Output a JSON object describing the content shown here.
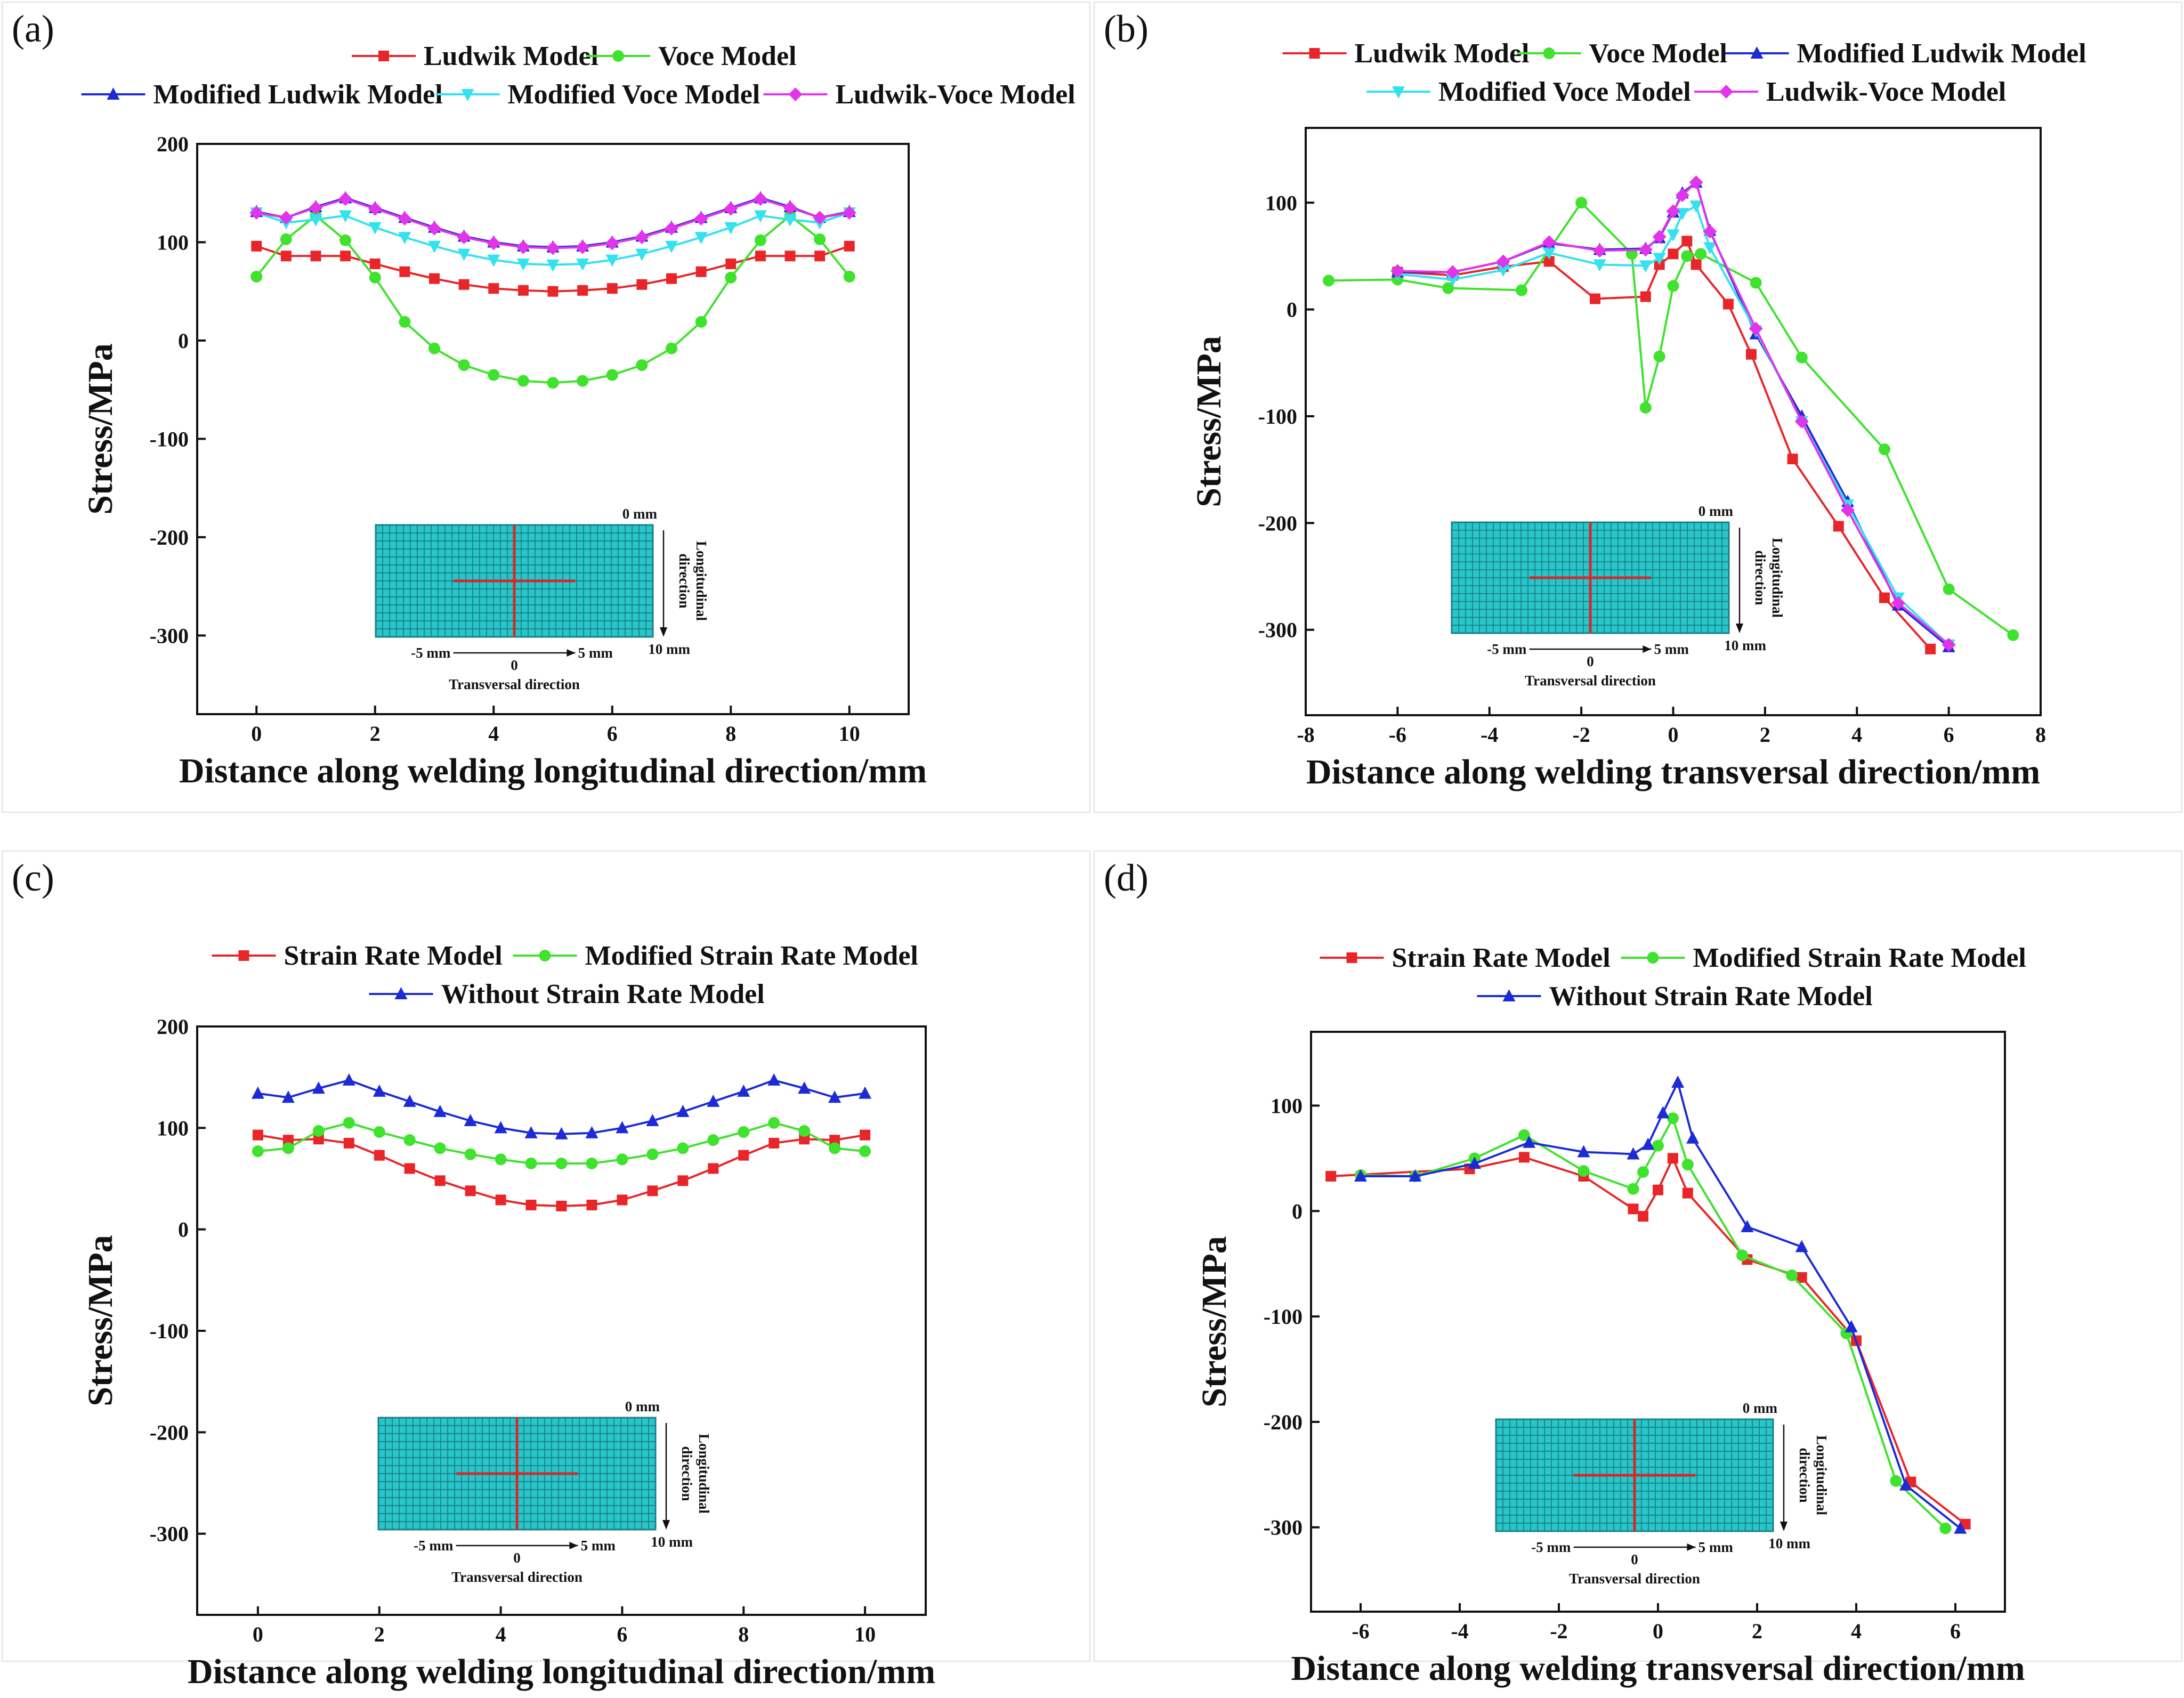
{
  "chart_data": [
    {
      "type": "line",
      "panel_label": "(a)",
      "xlabel": "Distance along welding longitudinal direction/mm",
      "ylabel": "Stress/MPa",
      "xlim": [
        -1,
        11
      ],
      "ylim": [
        -380,
        200
      ],
      "xticks": [
        0,
        2,
        4,
        6,
        8,
        10
      ],
      "yticks": [
        200,
        100,
        0,
        -100,
        -200,
        -300
      ],
      "legend_rows": [
        2,
        3
      ],
      "inset": {
        "top_label": "0 mm",
        "bottom_label": "10 mm",
        "left_label": "-5 mm",
        "center_label": "0",
        "right_label": "5 mm",
        "side_label": "Longitudinal direction",
        "bottom_caption": "Transversal direction"
      },
      "series": [
        {
          "name": "Ludwik Model",
          "color": "#e8262a",
          "marker": "square",
          "x": [
            0,
            0.5,
            1,
            1.5,
            2,
            2.5,
            3,
            3.5,
            4,
            4.5,
            5,
            5.5,
            6,
            6.5,
            7,
            7.5,
            8,
            8.5,
            9,
            9.5,
            10
          ],
          "y": [
            96,
            86,
            86,
            86,
            78,
            70,
            63,
            57,
            53,
            51,
            50,
            51,
            53,
            57,
            63,
            70,
            78,
            86,
            86,
            86,
            96
          ]
        },
        {
          "name": "Voce Model",
          "color": "#3fe22c",
          "marker": "circle",
          "x": [
            0,
            0.5,
            1,
            1.5,
            2,
            2.5,
            3,
            3.5,
            4,
            4.5,
            5,
            5.5,
            6,
            6.5,
            7,
            7.5,
            8,
            8.5,
            9,
            9.5,
            10
          ],
          "y": [
            65,
            103,
            127,
            102,
            64,
            19,
            -8,
            -25,
            -35,
            -41,
            -43,
            -41,
            -35,
            -25,
            -8,
            19,
            64,
            102,
            127,
            103,
            65
          ]
        },
        {
          "name": "Modified Ludwik Model",
          "color": "#1d2bd6",
          "marker": "triangle",
          "x": [
            0,
            0.5,
            1,
            1.5,
            2,
            2.5,
            3,
            3.5,
            4,
            4.5,
            5,
            5.5,
            6,
            6.5,
            7,
            7.5,
            8,
            8.5,
            9,
            9.5,
            10
          ],
          "y": [
            131,
            125,
            136,
            145,
            135,
            125,
            115,
            106,
            100,
            96,
            95,
            96,
            100,
            106,
            115,
            125,
            135,
            145,
            136,
            125,
            131
          ]
        },
        {
          "name": "Modified Voce Model",
          "color": "#33e2ee",
          "marker": "tri-down",
          "x": [
            0,
            0.5,
            1,
            1.5,
            2,
            2.5,
            3,
            3.5,
            4,
            4.5,
            5,
            5.5,
            6,
            6.5,
            7,
            7.5,
            8,
            8.5,
            9,
            9.5,
            10
          ],
          "y": [
            130,
            120,
            123,
            127,
            115,
            105,
            96,
            88,
            82,
            78,
            77,
            78,
            82,
            88,
            96,
            105,
            115,
            127,
            123,
            120,
            130
          ]
        },
        {
          "name": "Ludwik-Voce Model",
          "color": "#e234ea",
          "marker": "diamond",
          "x": [
            0,
            0.5,
            1,
            1.5,
            2,
            2.5,
            3,
            3.5,
            4,
            4.5,
            5,
            5.5,
            6,
            6.5,
            7,
            7.5,
            8,
            8.5,
            9,
            9.5,
            10
          ],
          "y": [
            130,
            125,
            135,
            144,
            134,
            124,
            114,
            105,
            99,
            95,
            94,
            95,
            99,
            105,
            114,
            124,
            134,
            144,
            135,
            125,
            130
          ]
        }
      ]
    },
    {
      "type": "line",
      "panel_label": "(b)",
      "xlabel": "Distance along welding transversal direction/mm",
      "ylabel": "Stress/MPa",
      "xlim": [
        -8,
        8
      ],
      "ylim": [
        -380,
        170
      ],
      "xticks": [
        -8,
        -6,
        -4,
        -2,
        0,
        2,
        4,
        6,
        8
      ],
      "yticks": [
        100,
        0,
        -100,
        -200,
        -300
      ],
      "legend_rows": [
        3,
        2
      ],
      "inset": {
        "top_label": "0 mm",
        "bottom_label": "10 mm",
        "left_label": "-5 mm",
        "center_label": "0",
        "right_label": "5 mm",
        "side_label": "Longitudinal direction",
        "bottom_caption": "Transversal direction"
      },
      "series": [
        {
          "name": "Ludwik Model",
          "color": "#e8262a",
          "marker": "square",
          "x": [
            -6,
            -4.8,
            -3.7,
            -2.7,
            -1.7,
            -0.6,
            -0.3,
            0,
            0.3,
            0.5,
            1.2,
            1.7,
            2.6,
            3.6,
            4.6,
            5.6
          ],
          "y": [
            35,
            32,
            40,
            45,
            10,
            12,
            42,
            52,
            64,
            42,
            5,
            -42,
            -140,
            -203,
            -270,
            -318
          ]
        },
        {
          "name": "Voce Model",
          "color": "#3fe22c",
          "marker": "circle",
          "x": [
            -7.5,
            -6,
            -4.9,
            -3.3,
            -2,
            -0.9,
            -0.6,
            -0.3,
            0,
            0.3,
            0.6,
            1.8,
            2.8,
            4.6,
            6,
            7.4
          ],
          "y": [
            27,
            28,
            20,
            18,
            100,
            52,
            -92,
            -44,
            22,
            50,
            52,
            25,
            -45,
            -131,
            -262,
            -305
          ]
        },
        {
          "name": "Modified Ludwik Model",
          "color": "#1d2bd6",
          "marker": "triangle",
          "x": [
            -6,
            -4.8,
            -3.7,
            -2.7,
            -1.6,
            -0.6,
            -0.3,
            0,
            0.2,
            0.5,
            0.8,
            1.8,
            2.8,
            3.8,
            4.9,
            6
          ],
          "y": [
            35,
            35,
            45,
            62,
            56,
            57,
            67,
            91,
            109,
            119,
            74,
            -23,
            -100,
            -180,
            -277,
            -316
          ]
        },
        {
          "name": "Modified Voce Model",
          "color": "#33e2ee",
          "marker": "tri-down",
          "x": [
            -6,
            -4.8,
            -3.7,
            -2.7,
            -1.6,
            -0.6,
            -0.3,
            0,
            0.2,
            0.5,
            0.8,
            1.8,
            2.8,
            3.8,
            4.9,
            6
          ],
          "y": [
            33,
            28,
            37,
            53,
            42,
            41,
            48,
            70,
            90,
            97,
            58,
            -20,
            -105,
            -183,
            -270,
            -314
          ]
        },
        {
          "name": "Ludwik-Voce Model",
          "color": "#e234ea",
          "marker": "diamond",
          "x": [
            -6,
            -4.8,
            -3.7,
            -2.7,
            -1.6,
            -0.6,
            -0.3,
            0,
            0.2,
            0.5,
            0.8,
            1.8,
            2.8,
            3.8,
            4.9,
            6
          ],
          "y": [
            36,
            35,
            45,
            63,
            55,
            56,
            68,
            92,
            107,
            119,
            73,
            -18,
            -105,
            -188,
            -275,
            -314
          ]
        }
      ]
    },
    {
      "type": "line",
      "panel_label": "(c)",
      "xlabel": "Distance along welding longitudinal direction/mm",
      "ylabel": "Stress/MPa",
      "xlim": [
        -1,
        11
      ],
      "ylim": [
        -380,
        200
      ],
      "xticks": [
        0,
        2,
        4,
        6,
        8,
        10
      ],
      "yticks": [
        200,
        100,
        0,
        -100,
        -200,
        -300
      ],
      "legend_rows": [
        2,
        1
      ],
      "inset": {
        "top_label": "0 mm",
        "bottom_label": "10 mm",
        "left_label": "-5 mm",
        "center_label": "0",
        "right_label": "5 mm",
        "side_label": "Longitudinal direction",
        "bottom_caption": "Transversal direction"
      },
      "series": [
        {
          "name": "Strain Rate Model",
          "color": "#e8262a",
          "marker": "square",
          "x": [
            0,
            0.5,
            1,
            1.5,
            2,
            2.5,
            3,
            3.5,
            4,
            4.5,
            5,
            5.5,
            6,
            6.5,
            7,
            7.5,
            8,
            8.5,
            9,
            9.5,
            10
          ],
          "y": [
            93,
            88,
            89,
            85,
            73,
            60,
            48,
            38,
            29,
            24,
            23,
            24,
            29,
            38,
            48,
            60,
            73,
            85,
            89,
            88,
            93
          ]
        },
        {
          "name": "Modified Strain Rate Model",
          "color": "#3fe22c",
          "marker": "circle",
          "x": [
            0,
            0.5,
            1,
            1.5,
            2,
            2.5,
            3,
            3.5,
            4,
            4.5,
            5,
            5.5,
            6,
            6.5,
            7,
            7.5,
            8,
            8.5,
            9,
            9.5,
            10
          ],
          "y": [
            77,
            80,
            97,
            105,
            96,
            88,
            80,
            74,
            69,
            65,
            65,
            65,
            69,
            74,
            80,
            88,
            96,
            105,
            97,
            80,
            77
          ]
        },
        {
          "name": "Without Strain Rate Model",
          "color": "#1d2bd6",
          "marker": "triangle",
          "x": [
            0,
            0.5,
            1,
            1.5,
            2,
            2.5,
            3,
            3.5,
            4,
            4.5,
            5,
            5.5,
            6,
            6.5,
            7,
            7.5,
            8,
            8.5,
            9,
            9.5,
            10
          ],
          "y": [
            134,
            130,
            139,
            147,
            136,
            126,
            116,
            107,
            100,
            95,
            94,
            95,
            100,
            107,
            116,
            126,
            136,
            147,
            139,
            130,
            134
          ]
        }
      ]
    },
    {
      "type": "line",
      "panel_label": "(d)",
      "xlabel": "Distance along welding transversal direction/mm",
      "ylabel": "Stress/MPa",
      "xlim": [
        -7,
        7
      ],
      "ylim": [
        -380,
        170
      ],
      "xticks": [
        -6,
        -4,
        -2,
        0,
        2,
        4,
        6
      ],
      "yticks": [
        100,
        0,
        -100,
        -200,
        -300
      ],
      "legend_rows": [
        2,
        1
      ],
      "inset": {
        "top_label": "0 mm",
        "bottom_label": "10 mm",
        "left_label": "-5 mm",
        "center_label": "0",
        "right_label": "5 mm",
        "side_label": "Longitudinal direction",
        "bottom_caption": "Transversal direction"
      },
      "series": [
        {
          "name": "Strain Rate Model",
          "color": "#e8262a",
          "marker": "square",
          "x": [
            -6.6,
            -3.8,
            -2.7,
            -1.5,
            -0.5,
            -0.3,
            0,
            0.3,
            0.6,
            1.8,
            2.9,
            4,
            5.1,
            6.2
          ],
          "y": [
            33,
            40,
            51,
            33,
            2,
            -5,
            20,
            50,
            17,
            -46,
            -63,
            -123,
            -257,
            -297
          ]
        },
        {
          "name": "Modified Strain Rate Model",
          "color": "#3fe22c",
          "marker": "circle",
          "x": [
            -6,
            -4.9,
            -3.7,
            -2.7,
            -1.5,
            -0.5,
            -0.3,
            0,
            0.3,
            0.6,
            1.7,
            2.7,
            3.8,
            4.8,
            5.8
          ],
          "y": [
            34,
            33,
            50,
            72,
            38,
            21,
            37,
            62,
            88,
            44,
            -42,
            -61,
            -116,
            -256,
            -301
          ]
        },
        {
          "name": "Without Strain Rate Model",
          "color": "#1d2bd6",
          "marker": "triangle",
          "x": [
            -6,
            -4.9,
            -3.7,
            -2.6,
            -1.5,
            -0.5,
            -0.2,
            0.1,
            0.4,
            0.7,
            1.8,
            2.9,
            3.9,
            5,
            6.1
          ],
          "y": [
            33,
            33,
            45,
            65,
            56,
            54,
            63,
            93,
            122,
            69,
            -15,
            -34,
            -110,
            -260,
            -301
          ]
        }
      ]
    }
  ]
}
